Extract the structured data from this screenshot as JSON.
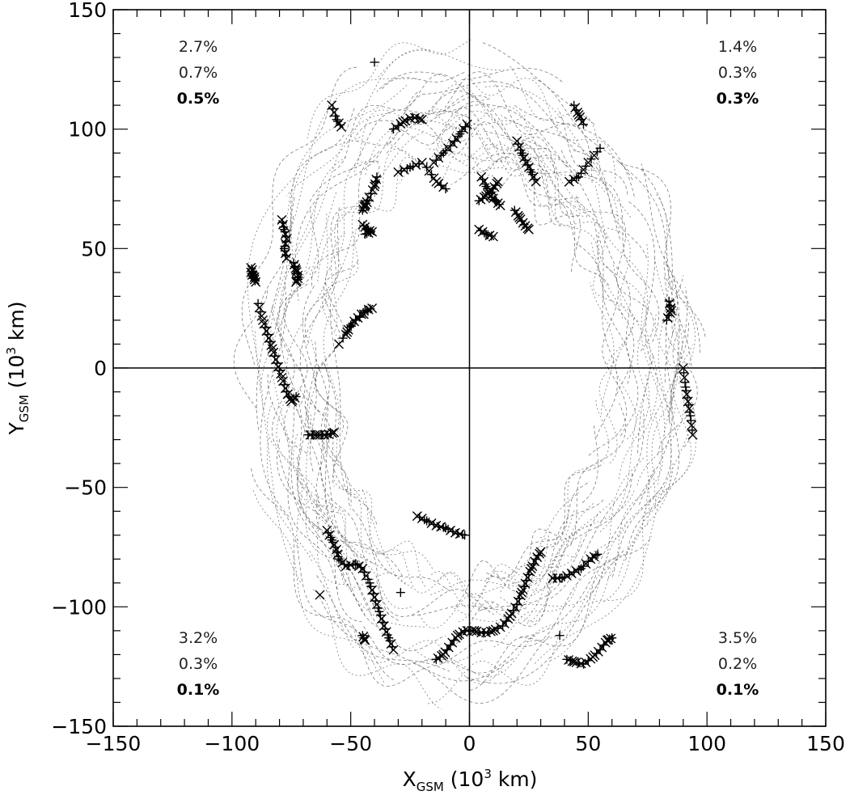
{
  "chart_data": {
    "type": "scatter",
    "title": "",
    "xlabel": {
      "main": "X",
      "sub": "GSM",
      "unit_open": " (10",
      "sup": "3",
      "unit_close": " km)"
    },
    "ylabel": {
      "main": "Y",
      "sub": "GSM",
      "unit_open": " (10",
      "sup": "3",
      "unit_close": " km)"
    },
    "xlim": [
      -150,
      150
    ],
    "ylim": [
      -150,
      150
    ],
    "x_ticks": [
      -150,
      -100,
      -50,
      0,
      50,
      100,
      150
    ],
    "y_ticks": [
      -150,
      -100,
      -50,
      0,
      50,
      100,
      150
    ],
    "x_tick_labels": [
      "−150",
      "−100",
      "−50",
      "0",
      "50",
      "100",
      "150"
    ],
    "y_tick_labels": [
      "−150",
      "−100",
      "−50",
      "0",
      "50",
      "100",
      "150"
    ],
    "reference_lines": {
      "x0": true,
      "y0": true
    },
    "grid": false,
    "quadrant_annotations": [
      {
        "quadrant": "top-left",
        "values": [
          "2.7%",
          "0.7%",
          "0.5%"
        ]
      },
      {
        "quadrant": "top-right",
        "values": [
          "1.4%",
          "0.3%",
          "0.3%"
        ]
      },
      {
        "quadrant": "bottom-left",
        "values": [
          "3.2%",
          "0.3%",
          "0.1%"
        ]
      },
      {
        "quadrant": "bottom-right",
        "values": [
          "3.5%",
          "0.2%",
          "0.1%"
        ]
      }
    ],
    "orbit_envelope": {
      "x_range": [
        -94,
        94
      ],
      "y_range": [
        -137,
        137
      ],
      "inner_x_range": [
        -55,
        55
      ],
      "inner_y_range": [
        -90,
        85
      ]
    },
    "event_series": [
      {
        "points": [
          [
            -92,
            40
          ],
          [
            -91,
            38
          ],
          [
            -90,
            36
          ],
          [
            -91,
            40
          ],
          [
            -92,
            42
          ]
        ]
      },
      {
        "points": [
          [
            -89,
            27
          ],
          [
            -87,
            20
          ],
          [
            -85,
            14
          ],
          [
            -83,
            8
          ],
          [
            -81,
            2
          ],
          [
            -79,
            -4
          ],
          [
            -77,
            -10
          ],
          [
            -75,
            -14
          ],
          [
            -73,
            -12
          ]
        ]
      },
      {
        "points": [
          [
            -79,
            62
          ],
          [
            -78,
            58
          ],
          [
            -77,
            54
          ],
          [
            -78,
            50
          ],
          [
            -77,
            46
          ]
        ]
      },
      {
        "points": [
          [
            -74,
            44
          ],
          [
            -73,
            41
          ],
          [
            -72,
            38
          ],
          [
            -73,
            36
          ]
        ]
      },
      {
        "points": [
          [
            -52,
            14
          ],
          [
            -50,
            18
          ],
          [
            -47,
            21
          ],
          [
            -44,
            24
          ],
          [
            -41,
            25
          ],
          [
            -48,
            20
          ],
          [
            -55,
            10
          ]
        ]
      },
      {
        "points": [
          [
            -68,
            -28
          ],
          [
            -64,
            -28
          ],
          [
            -60,
            -28
          ],
          [
            -57,
            -27
          ]
        ]
      },
      {
        "points": [
          [
            -60,
            -68
          ],
          [
            -58,
            -72
          ],
          [
            -56,
            -76
          ],
          [
            -55,
            -80
          ],
          [
            -52,
            -83
          ],
          [
            -48,
            -82
          ],
          [
            -45,
            -84
          ],
          [
            -42,
            -90
          ],
          [
            -40,
            -96
          ],
          [
            -38,
            -102
          ],
          [
            -36,
            -108
          ],
          [
            -34,
            -113
          ],
          [
            -32,
            -118
          ]
        ]
      },
      {
        "points": [
          [
            -45,
            -112
          ],
          [
            -44,
            -114
          ]
        ]
      },
      {
        "points": [
          [
            -22,
            -62
          ],
          [
            -18,
            -64
          ],
          [
            -14,
            -66
          ],
          [
            -10,
            -67
          ],
          [
            -6,
            -69
          ],
          [
            -2,
            -70
          ]
        ]
      },
      {
        "points": [
          [
            -14,
            -122
          ],
          [
            -11,
            -120
          ],
          [
            -8,
            -116
          ],
          [
            -5,
            -112
          ],
          [
            -2,
            -110
          ],
          [
            2,
            -110
          ],
          [
            6,
            -111
          ],
          [
            10,
            -110
          ],
          [
            14,
            -108
          ],
          [
            17,
            -104
          ],
          [
            20,
            -99
          ],
          [
            22,
            -94
          ],
          [
            24,
            -89
          ],
          [
            26,
            -84
          ],
          [
            28,
            -80
          ],
          [
            30,
            -77
          ]
        ]
      },
      {
        "points": [
          [
            35,
            -88
          ],
          [
            39,
            -88
          ],
          [
            43,
            -86
          ],
          [
            47,
            -84
          ],
          [
            51,
            -80
          ],
          [
            54,
            -78
          ]
        ]
      },
      {
        "points": [
          [
            41,
            -122
          ],
          [
            44,
            -123
          ],
          [
            48,
            -124
          ],
          [
            52,
            -121
          ],
          [
            55,
            -118
          ],
          [
            58,
            -114
          ],
          [
            60,
            -113
          ]
        ]
      },
      {
        "points": [
          [
            -45,
            60
          ],
          [
            -43,
            58
          ],
          [
            -41,
            57
          ],
          [
            -44,
            56
          ]
        ]
      },
      {
        "points": [
          [
            -45,
            66
          ],
          [
            -44,
            68
          ],
          [
            -43,
            70
          ],
          [
            -40,
            76
          ],
          [
            -39,
            80
          ]
        ]
      },
      {
        "points": [
          [
            -30,
            82
          ],
          [
            -25,
            84
          ],
          [
            -20,
            86
          ]
        ]
      },
      {
        "points": [
          [
            -18,
            84
          ],
          [
            -14,
            78
          ],
          [
            -10,
            75
          ]
        ]
      },
      {
        "points": [
          [
            -15,
            86
          ],
          [
            -11,
            90
          ],
          [
            -7,
            94
          ],
          [
            -4,
            98
          ],
          [
            -1,
            102
          ]
        ]
      },
      {
        "points": [
          [
            -32,
            100
          ],
          [
            -28,
            103
          ],
          [
            -24,
            105
          ],
          [
            -20,
            104
          ]
        ]
      },
      {
        "points": [
          [
            -58,
            110
          ],
          [
            -56,
            104
          ],
          [
            -54,
            101
          ]
        ]
      },
      {
        "points": [
          [
            -40,
            128
          ]
        ]
      },
      {
        "points": [
          [
            5,
            80
          ],
          [
            7,
            76
          ],
          [
            9,
            72
          ],
          [
            11,
            70
          ],
          [
            13,
            68
          ]
        ]
      },
      {
        "points": [
          [
            4,
            70
          ],
          [
            7,
            72
          ],
          [
            10,
            75
          ],
          [
            12,
            78
          ]
        ]
      },
      {
        "points": [
          [
            20,
            95
          ],
          [
            22,
            90
          ],
          [
            24,
            86
          ],
          [
            26,
            82
          ],
          [
            28,
            78
          ]
        ]
      },
      {
        "points": [
          [
            19,
            66
          ],
          [
            21,
            63
          ],
          [
            23,
            60
          ],
          [
            25,
            58
          ]
        ]
      },
      {
        "points": [
          [
            4,
            58
          ],
          [
            7,
            56
          ],
          [
            10,
            55
          ]
        ]
      },
      {
        "points": [
          [
            44,
            110
          ],
          [
            46,
            106
          ],
          [
            48,
            102
          ]
        ]
      },
      {
        "points": [
          [
            42,
            78
          ],
          [
            46,
            80
          ],
          [
            50,
            86
          ],
          [
            55,
            92
          ]
        ]
      },
      {
        "points": [
          [
            84,
            28
          ],
          [
            85,
            24
          ],
          [
            83,
            20
          ]
        ]
      },
      {
        "points": [
          [
            90,
            0
          ],
          [
            91,
            -8
          ],
          [
            92,
            -14
          ],
          [
            93,
            -20
          ],
          [
            94,
            -28
          ]
        ]
      },
      {
        "points": [
          [
            -29,
            -94
          ]
        ]
      },
      {
        "points": [
          [
            -63,
            -95
          ]
        ]
      },
      {
        "points": [
          [
            38,
            -112
          ]
        ]
      }
    ]
  }
}
